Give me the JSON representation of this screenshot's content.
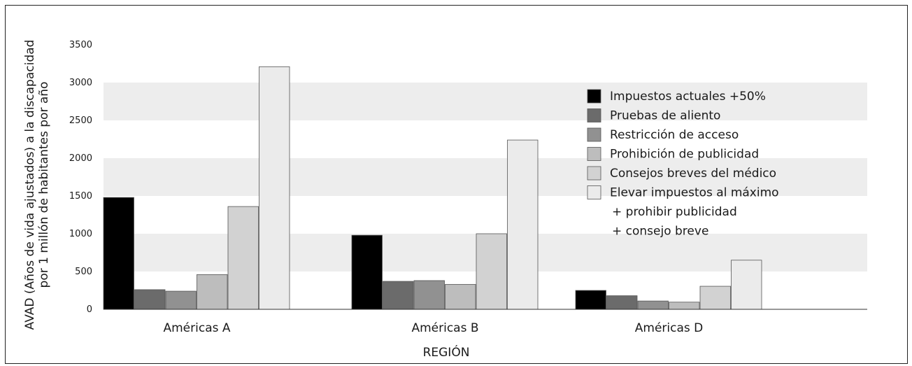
{
  "chart_data": {
    "type": "bar",
    "title": "",
    "xlabel": "REGIÓN",
    "ylabel_lines": [
      "AVAD (Años de vida ajustados) a la discapacidad",
      "por 1 millón de habitantes por año"
    ],
    "ylim": [
      0,
      3500
    ],
    "yticks": [
      0,
      500,
      1000,
      1500,
      2000,
      2500,
      3000,
      3500
    ],
    "categories": [
      "Américas A",
      "Américas B",
      "Américas D"
    ],
    "grid": "alternating horizontal bands",
    "legend_position": "right",
    "series": [
      {
        "name": "Impuestos actuales +50%",
        "name_lines": [
          "Impuestos actuales +50%"
        ],
        "color": "#000000",
        "values": [
          1480,
          980,
          250
        ]
      },
      {
        "name": "Pruebas de aliento",
        "name_lines": [
          "Pruebas de aliento"
        ],
        "color": "#6b6b6b",
        "values": [
          260,
          370,
          180
        ]
      },
      {
        "name": "Restricción de acceso",
        "name_lines": [
          "Restricción de acceso"
        ],
        "color": "#919191",
        "values": [
          240,
          380,
          110
        ]
      },
      {
        "name": "Prohibición de publicidad",
        "name_lines": [
          "Prohibición de publicidad"
        ],
        "color": "#bdbdbd",
        "values": [
          460,
          330,
          95
        ]
      },
      {
        "name": "Consejos breves del médico",
        "name_lines": [
          "Consejos breves del médico"
        ],
        "color": "#d2d2d2",
        "values": [
          1360,
          1000,
          305
        ]
      },
      {
        "name": "Elevar impuestos al máximo + prohibir publicidad + consejo breve",
        "name_lines": [
          "Elevar impuestos al máximo",
          "+ prohibir publicidad",
          "+ consejo breve"
        ],
        "color": "#ebebeb",
        "values": [
          3210,
          2240,
          650
        ]
      }
    ]
  }
}
